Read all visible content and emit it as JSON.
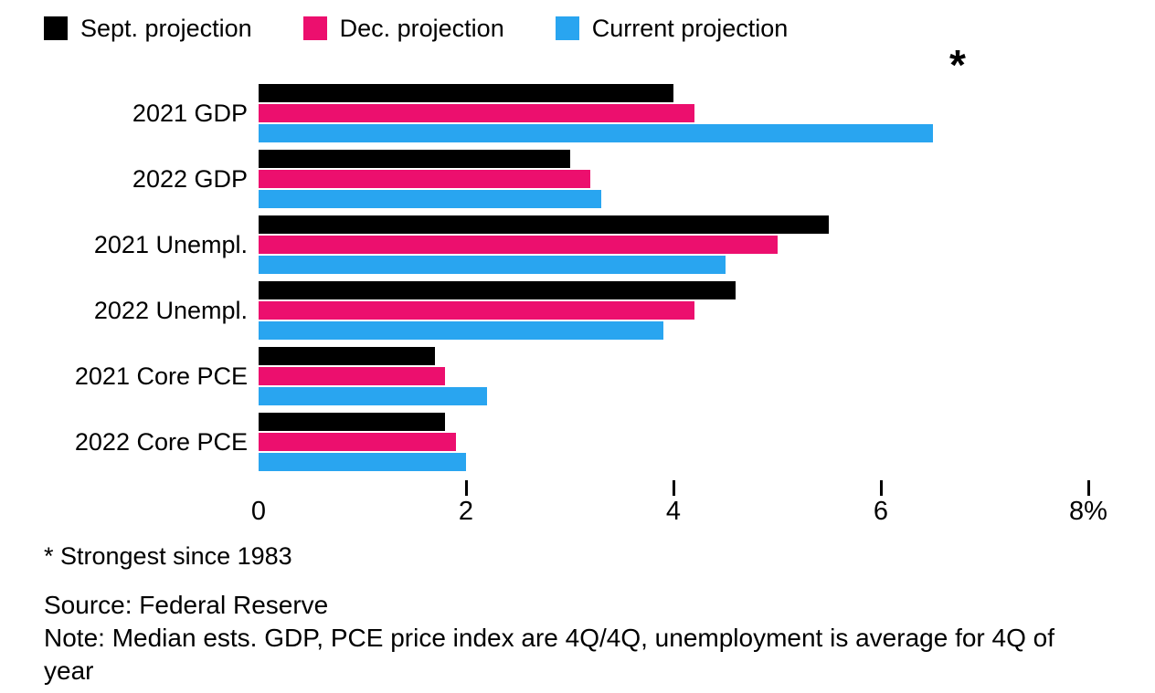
{
  "chart_data": {
    "type": "bar",
    "orientation": "horizontal",
    "title": "",
    "categories": [
      "2021 GDP",
      "2022 GDP",
      "2021 Unempl.",
      "2022 Unempl.",
      "2021 Core PCE",
      "2022 Core PCE"
    ],
    "series": [
      {
        "name": "Sept. projection",
        "color": "#000000",
        "values": [
          4.0,
          3.0,
          5.5,
          4.6,
          1.7,
          1.8
        ]
      },
      {
        "name": "Dec. projection",
        "color": "#ec0f6e",
        "values": [
          4.2,
          3.2,
          5.0,
          4.2,
          1.8,
          1.9
        ]
      },
      {
        "name": "Current projection",
        "color": "#29a5f0",
        "values": [
          6.5,
          3.3,
          4.5,
          3.9,
          2.2,
          2.0
        ]
      }
    ],
    "xlim": [
      0,
      8
    ],
    "x_ticks": [
      {
        "value": 0,
        "label": "0"
      },
      {
        "value": 2,
        "label": "2"
      },
      {
        "value": 4,
        "label": "4"
      },
      {
        "value": 6,
        "label": "6"
      },
      {
        "value": 8,
        "label": "8%"
      }
    ],
    "grid": false,
    "legend_position": "top",
    "annotation": {
      "text": "*",
      "x": 6.74
    },
    "footnote": "* Strongest since 1983",
    "source": "Source: Federal Reserve",
    "note": "Note: Median ests. GDP, PCE price index are 4Q/4Q, unemployment is average for 4Q of year"
  }
}
